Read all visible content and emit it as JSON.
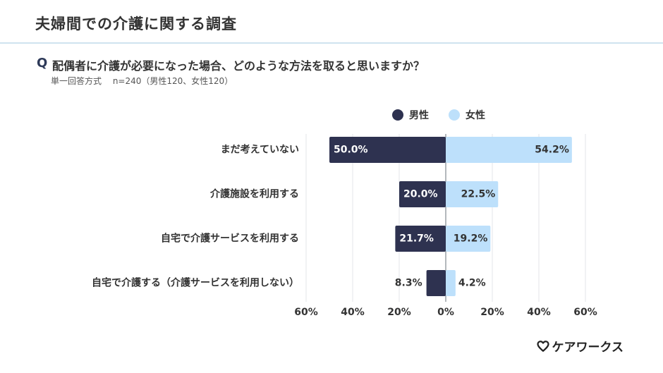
{
  "page": {
    "title": "夫婦間での介護に関する調査",
    "question_prefix": "Q",
    "question": "配偶者に介護が必要になった場合、どのような方法を取ると思いますか？",
    "meta": "単一回答方式　 n=240（男性120、女性120）"
  },
  "brand": {
    "name": "ケアワークス",
    "icon": "heart-icon"
  },
  "chart_data": {
    "type": "bar",
    "orientation": "horizontal-diverging",
    "categories": [
      "まだ考えていない",
      "介護施設を利用する",
      "自宅で介護サービスを利用する",
      "自宅で介護する（介護サービスを利用しない）"
    ],
    "series": [
      {
        "name": "男性",
        "values": [
          50.0,
          20.0,
          21.7,
          8.3
        ],
        "labels": [
          "50.0%",
          "20.0%",
          "21.7%",
          "8.3%"
        ],
        "color": "#2e3250",
        "direction": "left"
      },
      {
        "name": "女性",
        "values": [
          54.2,
          22.5,
          19.2,
          4.2
        ],
        "labels": [
          "54.2%",
          "22.5%",
          "19.2%",
          "4.2%"
        ],
        "color": "#bde0fb",
        "direction": "right"
      }
    ],
    "xlim": [
      -60,
      60
    ],
    "ticks": [
      "60%",
      "40%",
      "20%",
      "0%",
      "20%",
      "40%",
      "60%"
    ],
    "grid": true,
    "legend": "top"
  }
}
